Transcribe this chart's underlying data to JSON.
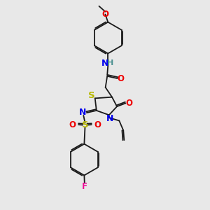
{
  "bg_color": "#e8e8e8",
  "bond_color": "#1a1a1a",
  "S_color": "#b8b800",
  "N_color": "#0000ee",
  "O_color": "#ee0000",
  "F_color": "#ee1199",
  "H_color": "#4a9090",
  "lw": 1.3,
  "xlim": [
    0,
    10
  ],
  "ylim": [
    0,
    14
  ]
}
